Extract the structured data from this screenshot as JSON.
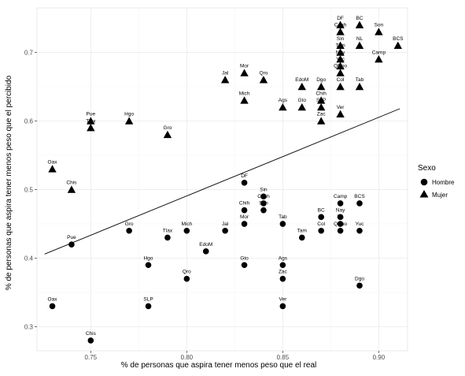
{
  "chart_data": {
    "type": "scatter",
    "xlabel": "% de personas que aspira tener menos peso que el real",
    "ylabel": "% de personas que aspira tener menos peso que el percibido",
    "xlim": [
      0.722,
      0.915
    ],
    "ylim": [
      0.265,
      0.765
    ],
    "x_ticks": [
      0.75,
      0.8,
      0.85,
      0.9
    ],
    "x_tick_labels": [
      "0.75",
      "0.80",
      "0.85",
      "0.90"
    ],
    "y_ticks": [
      0.3,
      0.4,
      0.5,
      0.6,
      0.7
    ],
    "y_tick_labels": [
      "0.3",
      "0.4",
      "0.5",
      "0.6",
      "0.7"
    ],
    "grid": true,
    "legend": {
      "title": "Sexo",
      "placement": "right",
      "entries": [
        {
          "label": "Hombre",
          "shape": "circle"
        },
        {
          "label": "Mujer",
          "shape": "triangle"
        }
      ]
    },
    "trend_line": {
      "x": [
        0.726,
        0.911
      ],
      "y": [
        0.406,
        0.618
      ]
    },
    "colors": {
      "points": "#000000",
      "panel": "#ffffff",
      "grid": "#ebebeb"
    },
    "series": [
      {
        "name": "Hombre",
        "marker": "circle",
        "points": [
          {
            "label": "DF",
            "x": 0.83,
            "y": 0.51
          },
          {
            "label": "Sin",
            "x": 0.84,
            "y": 0.49
          },
          {
            "label": "Coah",
            "x": 0.84,
            "y": 0.48
          },
          {
            "label": "Chih",
            "x": 0.83,
            "y": 0.47
          },
          {
            "label": "Son",
            "x": 0.84,
            "y": 0.47
          },
          {
            "label": "Mor",
            "x": 0.83,
            "y": 0.45
          },
          {
            "label": "Tab",
            "x": 0.85,
            "y": 0.45
          },
          {
            "label": "Jal",
            "x": 0.82,
            "y": 0.44
          },
          {
            "label": "Mich",
            "x": 0.8,
            "y": 0.44
          },
          {
            "label": "Tlax",
            "x": 0.79,
            "y": 0.43
          },
          {
            "label": "Gro",
            "x": 0.77,
            "y": 0.44
          },
          {
            "label": "Pue",
            "x": 0.74,
            "y": 0.42
          },
          {
            "label": "EdoM",
            "x": 0.81,
            "y": 0.41
          },
          {
            "label": "Hgo",
            "x": 0.78,
            "y": 0.39
          },
          {
            "label": "Gto",
            "x": 0.83,
            "y": 0.39
          },
          {
            "label": "Qro",
            "x": 0.8,
            "y": 0.37
          },
          {
            "label": "Ags",
            "x": 0.85,
            "y": 0.39
          },
          {
            "label": "Zac",
            "x": 0.85,
            "y": 0.37
          },
          {
            "label": "Tam",
            "x": 0.86,
            "y": 0.43
          },
          {
            "label": "Col",
            "x": 0.87,
            "y": 0.44
          },
          {
            "label": "BC",
            "x": 0.87,
            "y": 0.46
          },
          {
            "label": "Nay",
            "x": 0.88,
            "y": 0.46
          },
          {
            "label": "Camp",
            "x": 0.88,
            "y": 0.48
          },
          {
            "label": "QRoo",
            "x": 0.88,
            "y": 0.44
          },
          {
            "label": "NL",
            "x": 0.88,
            "y": 0.45
          },
          {
            "label": "BCS",
            "x": 0.89,
            "y": 0.48
          },
          {
            "label": "Yuc",
            "x": 0.89,
            "y": 0.44
          },
          {
            "label": "Dgo",
            "x": 0.89,
            "y": 0.36
          },
          {
            "label": "SLP",
            "x": 0.78,
            "y": 0.33
          },
          {
            "label": "Oax",
            "x": 0.73,
            "y": 0.33
          },
          {
            "label": "Ver",
            "x": 0.85,
            "y": 0.33
          },
          {
            "label": "Chis",
            "x": 0.75,
            "y": 0.28
          }
        ]
      },
      {
        "name": "Mujer",
        "marker": "triangle",
        "points": [
          {
            "label": "DF",
            "x": 0.88,
            "y": 0.74
          },
          {
            "label": "BC",
            "x": 0.89,
            "y": 0.74
          },
          {
            "label": "Son",
            "x": 0.9,
            "y": 0.73
          },
          {
            "label": "BCS",
            "x": 0.91,
            "y": 0.71
          },
          {
            "label": "Coah",
            "x": 0.88,
            "y": 0.73
          },
          {
            "label": "Sin",
            "x": 0.88,
            "y": 0.71
          },
          {
            "label": "NL",
            "x": 0.89,
            "y": 0.71
          },
          {
            "label": "Tam",
            "x": 0.88,
            "y": 0.7
          },
          {
            "label": "Camp",
            "x": 0.9,
            "y": 0.69
          },
          {
            "label": "Nay",
            "x": 0.88,
            "y": 0.69
          },
          {
            "label": "Yuc",
            "x": 0.88,
            "y": 0.68
          },
          {
            "label": "QRoo",
            "x": 0.88,
            "y": 0.67
          },
          {
            "label": "Tab",
            "x": 0.89,
            "y": 0.65
          },
          {
            "label": "Col",
            "x": 0.88,
            "y": 0.65
          },
          {
            "label": "Dgo",
            "x": 0.87,
            "y": 0.65
          },
          {
            "label": "Chih",
            "x": 0.87,
            "y": 0.63
          },
          {
            "label": "SLP",
            "x": 0.87,
            "y": 0.62
          },
          {
            "label": "Ver",
            "x": 0.88,
            "y": 0.61
          },
          {
            "label": "Zac",
            "x": 0.87,
            "y": 0.6
          },
          {
            "label": "EdoM",
            "x": 0.86,
            "y": 0.65
          },
          {
            "label": "Gto",
            "x": 0.86,
            "y": 0.62
          },
          {
            "label": "Ags",
            "x": 0.85,
            "y": 0.62
          },
          {
            "label": "Mor",
            "x": 0.83,
            "y": 0.67
          },
          {
            "label": "Qro",
            "x": 0.84,
            "y": 0.66
          },
          {
            "label": "Jal",
            "x": 0.82,
            "y": 0.66
          },
          {
            "label": "Mich",
            "x": 0.83,
            "y": 0.63
          },
          {
            "label": "Pue",
            "x": 0.75,
            "y": 0.6
          },
          {
            "label": "Tlax",
            "x": 0.75,
            "y": 0.59
          },
          {
            "label": "Hgo",
            "x": 0.77,
            "y": 0.6
          },
          {
            "label": "Gro",
            "x": 0.79,
            "y": 0.58
          },
          {
            "label": "Oax",
            "x": 0.73,
            "y": 0.53
          },
          {
            "label": "Chis",
            "x": 0.74,
            "y": 0.5
          }
        ]
      }
    ]
  }
}
